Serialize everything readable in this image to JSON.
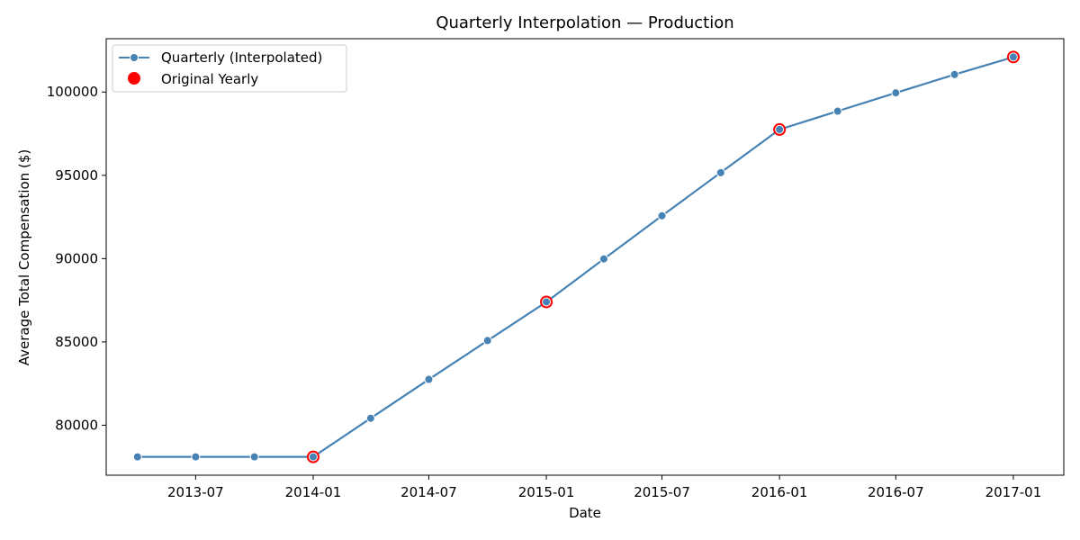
{
  "chart_data": {
    "type": "line",
    "title": "Quarterly Interpolation — Production",
    "xlabel": "Date",
    "ylabel": "Average Total Compensation ($)",
    "legend_position": "top-left",
    "grid": false,
    "xlim": [
      "2013-02-11",
      "2017-03-21"
    ],
    "ylim": [
      77000,
      103200
    ],
    "x_ticks": [
      "2013-07",
      "2014-01",
      "2014-07",
      "2015-01",
      "2015-07",
      "2016-01",
      "2016-07",
      "2017-01"
    ],
    "y_ticks": [
      80000,
      85000,
      90000,
      95000,
      100000
    ],
    "series": [
      {
        "name": "Quarterly (Interpolated)",
        "style": "line-marker",
        "color": "#4682b4",
        "x": [
          "2013-04-01",
          "2013-07-01",
          "2013-10-01",
          "2014-01-01",
          "2014-04-01",
          "2014-07-01",
          "2014-10-01",
          "2015-01-01",
          "2015-04-01",
          "2015-07-01",
          "2015-10-01",
          "2016-01-01",
          "2016-04-01",
          "2016-07-01",
          "2016-10-01",
          "2017-01-01"
        ],
        "y": [
          78100,
          78100,
          78100,
          78100,
          80420,
          82750,
          85080,
          87400,
          89980,
          92570,
          95160,
          97750,
          98850,
          99950,
          101050,
          102100
        ]
      },
      {
        "name": "Original Yearly",
        "style": "scatter",
        "color": "#ff0000",
        "x": [
          "2014-01-01",
          "2015-01-01",
          "2016-01-01",
          "2017-01-01"
        ],
        "y": [
          78100,
          87400,
          97750,
          102100
        ]
      }
    ]
  }
}
